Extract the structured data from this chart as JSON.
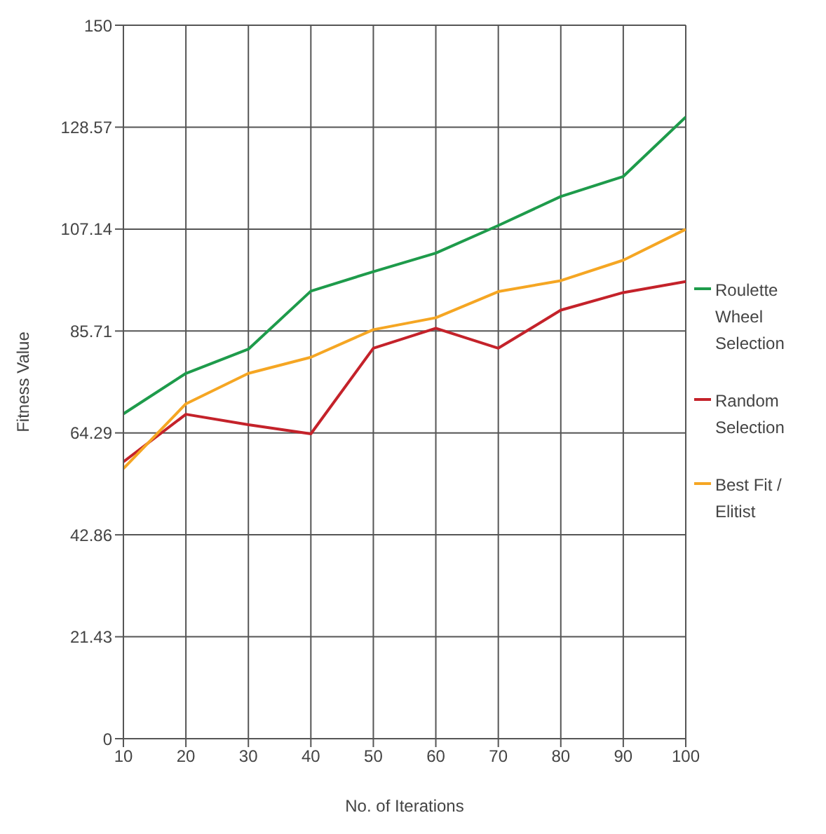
{
  "chart_data": {
    "type": "line",
    "xlabel": "No. of Iterations",
    "ylabel": "Fitness Value",
    "x": [
      10,
      20,
      30,
      40,
      50,
      60,
      70,
      80,
      90,
      100
    ],
    "xlim": [
      10,
      100
    ],
    "xticks": [
      10,
      20,
      30,
      40,
      50,
      60,
      70,
      80,
      90,
      100
    ],
    "ylim": [
      0,
      150
    ],
    "yticks": [
      0,
      21.43,
      42.86,
      64.29,
      85.71,
      107.14,
      128.57,
      150
    ],
    "grid": true,
    "legend": "right",
    "marker": "none",
    "line_style": "solid",
    "series": [
      {
        "name": "Roulette Wheel Selection",
        "color": "#1e9b4b",
        "values": [
          68.3,
          76.8,
          81.9,
          94.1,
          98.2,
          102.1,
          107.9,
          114,
          118.2,
          130.7
        ]
      },
      {
        "name": "Random Selection",
        "color": "#c4222a",
        "values": [
          58.2,
          68.2,
          66,
          64.1,
          82.1,
          86.3,
          82.1,
          90.1,
          93.8,
          96.1
        ]
      },
      {
        "name": "Best Fit / Elitist",
        "color": "#f5a623",
        "values": [
          56.8,
          70.4,
          76.8,
          80.2,
          86,
          88.5,
          94,
          96.3,
          100.6,
          107.1
        ]
      }
    ]
  }
}
